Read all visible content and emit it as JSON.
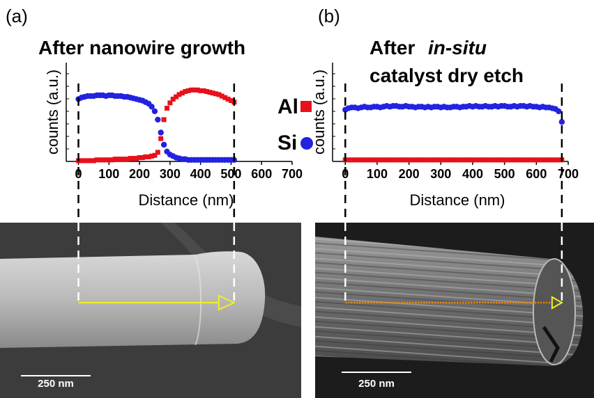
{
  "chart_data": [
    {
      "type": "scatter",
      "panel_label": "(a)",
      "title": [
        "After nanowire growth"
      ],
      "x_label": "Distance (nm)",
      "y_label": "counts (a.u.)",
      "xlim": [
        -40,
        700
      ],
      "xticks": [
        0,
        100,
        200,
        300,
        400,
        500,
        600,
        700
      ],
      "ylim": [
        0,
        1.3
      ],
      "legend": true,
      "scale_bar": "250 nm",
      "x": [
        0,
        10,
        20,
        30,
        40,
        50,
        60,
        70,
        80,
        90,
        100,
        110,
        120,
        130,
        140,
        150,
        160,
        170,
        180,
        190,
        200,
        210,
        220,
        230,
        240,
        250,
        260,
        270,
        280,
        290,
        300,
        310,
        320,
        330,
        340,
        350,
        360,
        370,
        380,
        390,
        400,
        410,
        420,
        430,
        440,
        450,
        460,
        470,
        480,
        490,
        500,
        510
      ],
      "series": [
        {
          "name": "Al",
          "color": "#e8101a",
          "marker": "square",
          "values": [
            0.01,
            0.01,
            0.01,
            0.01,
            0.01,
            0.01,
            0.02,
            0.02,
            0.02,
            0.02,
            0.02,
            0.02,
            0.03,
            0.03,
            0.03,
            0.03,
            0.03,
            0.04,
            0.04,
            0.04,
            0.05,
            0.05,
            0.06,
            0.06,
            0.07,
            0.08,
            0.12,
            0.3,
            0.55,
            0.7,
            0.77,
            0.82,
            0.85,
            0.88,
            0.9,
            0.92,
            0.93,
            0.94,
            0.94,
            0.94,
            0.93,
            0.93,
            0.92,
            0.91,
            0.9,
            0.89,
            0.88,
            0.86,
            0.84,
            0.82,
            0.8,
            0.78
          ]
        },
        {
          "name": "Si",
          "color": "#2222e0",
          "marker": "circle",
          "values": [
            0.82,
            0.84,
            0.85,
            0.86,
            0.86,
            0.86,
            0.87,
            0.87,
            0.87,
            0.86,
            0.87,
            0.87,
            0.86,
            0.86,
            0.86,
            0.85,
            0.85,
            0.84,
            0.83,
            0.82,
            0.81,
            0.8,
            0.78,
            0.76,
            0.72,
            0.66,
            0.55,
            0.38,
            0.22,
            0.13,
            0.09,
            0.07,
            0.05,
            0.04,
            0.03,
            0.03,
            0.02,
            0.02,
            0.02,
            0.02,
            0.02,
            0.02,
            0.02,
            0.02,
            0.02,
            0.02,
            0.02,
            0.02,
            0.02,
            0.02,
            0.02,
            0.02
          ]
        }
      ]
    },
    {
      "type": "scatter",
      "panel_label": "(b)",
      "title": [
        "After",
        "in-situ",
        "catalyst dry etch"
      ],
      "x_label": "Distance (nm)",
      "y_label": "counts (a.u.)",
      "xlim": [
        -40,
        700
      ],
      "xticks": [
        0,
        100,
        200,
        300,
        400,
        500,
        600,
        700
      ],
      "ylim": [
        0,
        1.3
      ],
      "legend": false,
      "scale_bar": "250 nm",
      "x": [
        0,
        10,
        20,
        30,
        40,
        50,
        60,
        70,
        80,
        90,
        100,
        110,
        120,
        130,
        140,
        150,
        160,
        170,
        180,
        190,
        200,
        210,
        220,
        230,
        240,
        250,
        260,
        270,
        280,
        290,
        300,
        310,
        320,
        330,
        340,
        350,
        360,
        370,
        380,
        390,
        400,
        410,
        420,
        430,
        440,
        450,
        460,
        470,
        480,
        490,
        500,
        510,
        520,
        530,
        540,
        550,
        560,
        570,
        580,
        590,
        600,
        610,
        620,
        630,
        640,
        650,
        660,
        670,
        680
      ],
      "series": [
        {
          "color": "#e8101a",
          "marker": "square",
          "values": [
            0.02,
            0.02,
            0.02,
            0.02,
            0.02,
            0.02,
            0.02,
            0.02,
            0.02,
            0.02,
            0.02,
            0.02,
            0.02,
            0.02,
            0.02,
            0.02,
            0.02,
            0.02,
            0.02,
            0.02,
            0.02,
            0.02,
            0.02,
            0.02,
            0.02,
            0.02,
            0.02,
            0.02,
            0.02,
            0.02,
            0.02,
            0.02,
            0.02,
            0.02,
            0.02,
            0.02,
            0.02,
            0.02,
            0.02,
            0.02,
            0.02,
            0.02,
            0.02,
            0.02,
            0.02,
            0.02,
            0.02,
            0.02,
            0.02,
            0.02,
            0.02,
            0.02,
            0.02,
            0.02,
            0.02,
            0.02,
            0.02,
            0.02,
            0.02,
            0.02,
            0.02,
            0.02,
            0.02,
            0.02,
            0.02,
            0.02,
            0.02,
            0.02,
            0.02
          ]
        },
        {
          "color": "#2222e0",
          "marker": "circle",
          "values": [
            0.68,
            0.7,
            0.71,
            0.71,
            0.7,
            0.71,
            0.72,
            0.71,
            0.71,
            0.72,
            0.72,
            0.71,
            0.72,
            0.73,
            0.72,
            0.73,
            0.73,
            0.72,
            0.72,
            0.73,
            0.72,
            0.72,
            0.71,
            0.72,
            0.72,
            0.71,
            0.72,
            0.71,
            0.72,
            0.72,
            0.71,
            0.72,
            0.71,
            0.71,
            0.72,
            0.72,
            0.71,
            0.72,
            0.72,
            0.73,
            0.72,
            0.73,
            0.72,
            0.72,
            0.73,
            0.72,
            0.72,
            0.73,
            0.72,
            0.73,
            0.73,
            0.72,
            0.72,
            0.73,
            0.72,
            0.73,
            0.73,
            0.72,
            0.73,
            0.72,
            0.72,
            0.71,
            0.72,
            0.71,
            0.71,
            0.7,
            0.69,
            0.66,
            0.52
          ]
        }
      ]
    }
  ]
}
